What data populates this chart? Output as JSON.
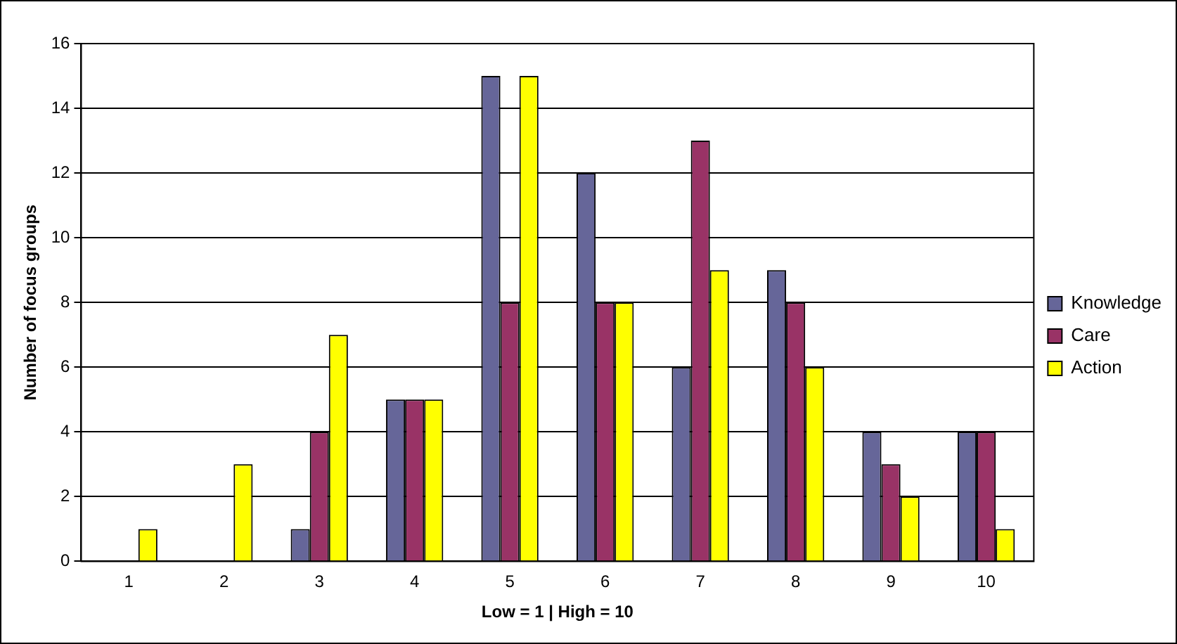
{
  "chart_data": {
    "type": "bar",
    "xlabel": "Low = 1 | High = 10",
    "ylabel": "Number of focus groups",
    "categories": [
      "1",
      "2",
      "3",
      "4",
      "5",
      "6",
      "7",
      "8",
      "9",
      "10"
    ],
    "series": [
      {
        "name": "Knowledge",
        "color": "#666699",
        "values": [
          0,
          0,
          1,
          5,
          15,
          12,
          6,
          9,
          4,
          4
        ]
      },
      {
        "name": "Care",
        "color": "#993366",
        "values": [
          0,
          0,
          4,
          5,
          8,
          8,
          13,
          8,
          3,
          4
        ]
      },
      {
        "name": "Action",
        "color": "#ffff00",
        "values": [
          1,
          3,
          7,
          5,
          15,
          8,
          9,
          6,
          2,
          1
        ]
      }
    ],
    "ylim": [
      0,
      16
    ],
    "yticks": [
      0,
      2,
      4,
      6,
      8,
      10,
      12,
      14,
      16
    ],
    "grid": "y",
    "legend": "right"
  }
}
